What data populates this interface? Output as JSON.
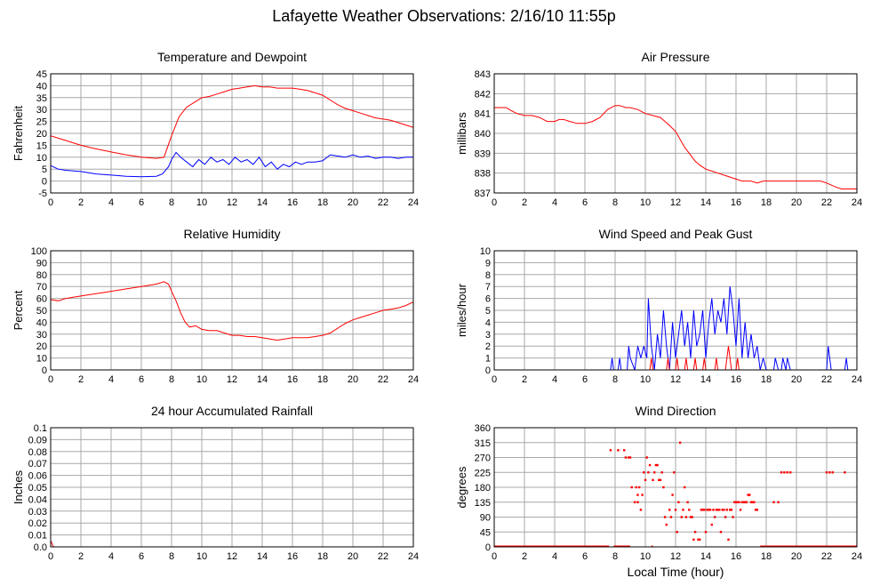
{
  "page": {
    "title": "Lafayette Weather Observations: 2/16/10 11:55p",
    "footer_xlabel": "Local Time (hour)"
  },
  "colors": {
    "red": "#ff0000",
    "blue": "#0000ff",
    "grid": "#a8a8a8",
    "frame": "#000000"
  },
  "chart_data": [
    {
      "id": "temp",
      "type": "line",
      "title": "Temperature and Dewpoint",
      "xlabel": "",
      "ylabel": "Fahrenheit",
      "xlim": [
        0,
        24
      ],
      "xticks": [
        0,
        2,
        4,
        6,
        8,
        10,
        12,
        14,
        16,
        18,
        20,
        22,
        24
      ],
      "ylim": [
        -5,
        45
      ],
      "yticks": [
        -5,
        0,
        5,
        10,
        15,
        20,
        25,
        30,
        35,
        40,
        45
      ],
      "series": [
        {
          "color": "#ff0000",
          "x": [
            0,
            1,
            2,
            3,
            4,
            5,
            6,
            7,
            7.5,
            8,
            8.5,
            9,
            9.5,
            10,
            10.5,
            11,
            11.5,
            12,
            12.5,
            13,
            13.5,
            14,
            14.5,
            15,
            15.5,
            16,
            16.5,
            17,
            17.5,
            18,
            18.5,
            19,
            19.5,
            20,
            20.5,
            21,
            21.5,
            22,
            22.5,
            23,
            23.5,
            24
          ],
          "values": [
            19,
            17,
            15,
            13.5,
            12.2,
            11,
            10,
            9.5,
            10,
            19,
            27,
            31,
            33,
            35,
            35.5,
            36.5,
            37.5,
            38.5,
            39,
            39.5,
            40,
            39.5,
            39.5,
            39,
            39,
            39,
            38.5,
            38,
            37,
            36,
            34,
            32,
            30.5,
            29.5,
            28.5,
            27.5,
            26.5,
            26,
            25.5,
            24.5,
            23.5,
            22.5
          ]
        },
        {
          "color": "#0000ff",
          "x": [
            0,
            0.5,
            1,
            2,
            3,
            4,
            5,
            6,
            7,
            7.4,
            7.8,
            8,
            8.3,
            8.6,
            9,
            9.4,
            9.8,
            10.2,
            10.6,
            11,
            11.4,
            11.8,
            12.2,
            12.6,
            13,
            13.4,
            13.8,
            14.2,
            14.6,
            15,
            15.4,
            15.8,
            16.2,
            16.6,
            17,
            17.5,
            18,
            18.5,
            19,
            19.5,
            20,
            20.5,
            21,
            21.5,
            22,
            22.5,
            23,
            23.5,
            24
          ],
          "values": [
            6.5,
            5,
            4.5,
            4,
            3,
            2.5,
            2,
            1.8,
            2,
            3,
            6,
            9,
            12,
            10,
            8,
            6,
            9,
            7,
            10,
            8,
            9,
            7,
            10,
            8,
            9,
            7,
            10,
            6,
            8,
            5,
            7,
            6,
            8,
            7,
            8,
            8,
            8.5,
            11,
            10.5,
            10,
            11,
            10,
            10.5,
            9.5,
            10,
            10,
            9.5,
            10,
            10
          ]
        }
      ]
    },
    {
      "id": "pressure",
      "type": "line",
      "title": "Air Pressure",
      "xlabel": "",
      "ylabel": "millibars",
      "xlim": [
        0,
        24
      ],
      "xticks": [
        0,
        2,
        4,
        6,
        8,
        10,
        12,
        14,
        16,
        18,
        20,
        22,
        24
      ],
      "ylim": [
        837,
        843
      ],
      "yticks": [
        837,
        838,
        839,
        840,
        841,
        842,
        843
      ],
      "series": [
        {
          "color": "#ff0000",
          "x": [
            0,
            0.8,
            1,
            1.5,
            2,
            2.5,
            3,
            3.5,
            4,
            4.3,
            4.6,
            5,
            5.5,
            6,
            6.5,
            7,
            7.5,
            8,
            8.3,
            8.7,
            9,
            9.5,
            10,
            10.5,
            11,
            11.3,
            11.6,
            12,
            12.3,
            12.6,
            13,
            13.3,
            13.6,
            14,
            14.4,
            14.8,
            15.2,
            15.6,
            16,
            16.4,
            17,
            17.4,
            17.8,
            18,
            19,
            20,
            21,
            21.6,
            22,
            22.3,
            22.6,
            23,
            23.5,
            24
          ],
          "values": [
            841.3,
            841.3,
            841.2,
            841.0,
            840.9,
            840.9,
            840.8,
            840.6,
            840.6,
            840.7,
            840.7,
            840.6,
            840.5,
            840.5,
            840.6,
            840.8,
            841.2,
            841.4,
            841.4,
            841.3,
            841.3,
            841.2,
            841.0,
            840.9,
            840.8,
            840.6,
            840.4,
            840.1,
            839.7,
            839.3,
            838.9,
            838.6,
            838.4,
            838.2,
            838.1,
            838.0,
            837.9,
            837.8,
            837.7,
            837.6,
            837.6,
            837.5,
            837.6,
            837.6,
            837.6,
            837.6,
            837.6,
            837.6,
            837.5,
            837.4,
            837.3,
            837.2,
            837.2,
            837.2
          ]
        }
      ]
    },
    {
      "id": "humidity",
      "type": "line",
      "title": "Relative Humidity",
      "xlabel": "",
      "ylabel": "Percent",
      "xlim": [
        0,
        24
      ],
      "xticks": [
        0,
        2,
        4,
        6,
        8,
        10,
        12,
        14,
        16,
        18,
        20,
        22,
        24
      ],
      "ylim": [
        0,
        100
      ],
      "yticks": [
        0,
        10,
        20,
        30,
        40,
        50,
        60,
        70,
        80,
        90,
        100
      ],
      "series": [
        {
          "color": "#ff0000",
          "x": [
            0,
            0.5,
            1,
            2,
            3,
            4,
            5,
            6,
            7,
            7.5,
            7.8,
            8,
            8.3,
            8.6,
            8.9,
            9.2,
            9.6,
            10,
            10.5,
            11,
            11.5,
            12,
            12.5,
            13,
            13.5,
            14,
            14.5,
            15,
            15.5,
            16,
            16.5,
            17,
            17.5,
            18,
            18.5,
            19,
            19.5,
            20,
            20.5,
            21,
            21.5,
            22,
            22.5,
            23,
            23.5,
            24
          ],
          "values": [
            59,
            58,
            60,
            62,
            64,
            66,
            68,
            70,
            72,
            74,
            72,
            66,
            58,
            48,
            40,
            36,
            37,
            34,
            33,
            33,
            31,
            29,
            29,
            28,
            28,
            27,
            26,
            25,
            26,
            27,
            27,
            27,
            28,
            29,
            31,
            35,
            39,
            42,
            44,
            46,
            48,
            50,
            51,
            52,
            54,
            57
          ]
        }
      ]
    },
    {
      "id": "wind",
      "type": "line",
      "title": "Wind Speed and Peak Gust",
      "xlabel": "",
      "ylabel": "miles/hour",
      "xlim": [
        0,
        24
      ],
      "xticks": [
        0,
        2,
        4,
        6,
        8,
        10,
        12,
        14,
        16,
        18,
        20,
        22,
        24
      ],
      "ylim": [
        0,
        10
      ],
      "yticks": [
        0,
        1,
        2,
        3,
        4,
        5,
        6,
        7,
        8,
        9,
        10
      ],
      "series": [
        {
          "color": "#0000ff",
          "x": [
            0,
            7.7,
            7.8,
            7.9,
            8.2,
            8.3,
            8.4,
            8.8,
            8.9,
            9.0,
            9.3,
            9.5,
            9.7,
            9.9,
            10.1,
            10.2,
            10.4,
            10.6,
            10.8,
            11.0,
            11.2,
            11.4,
            11.6,
            11.8,
            12.0,
            12.2,
            12.4,
            12.6,
            12.8,
            13.0,
            13.2,
            13.4,
            13.6,
            13.8,
            14.0,
            14.2,
            14.4,
            14.6,
            14.8,
            15.0,
            15.2,
            15.4,
            15.6,
            15.8,
            16.0,
            16.2,
            16.4,
            16.6,
            16.8,
            17.0,
            17.2,
            17.4,
            17.6,
            17.8,
            18.0,
            18.2,
            18.5,
            18.6,
            18.8,
            19.0,
            19.1,
            19.3,
            19.4,
            19.6,
            19.7,
            22.0,
            22.1,
            22.3,
            23.2,
            23.3,
            23.4,
            24
          ],
          "values": [
            0,
            0,
            1,
            0,
            0,
            1,
            0,
            0,
            2,
            1,
            0,
            2,
            1,
            2,
            1,
            6,
            2,
            0,
            3,
            1,
            5,
            2,
            0,
            4,
            1,
            3,
            5,
            2,
            4,
            1,
            5,
            2,
            3,
            5,
            1,
            4,
            6,
            3,
            5,
            4,
            6,
            3,
            7,
            5,
            2,
            6,
            1,
            4,
            1,
            3,
            1,
            2,
            0,
            1,
            0,
            0,
            0,
            1,
            0,
            0,
            1,
            0,
            1,
            0,
            0,
            0,
            2,
            0,
            0,
            1,
            0,
            0
          ]
        },
        {
          "color": "#ff0000",
          "x": [
            0,
            10.3,
            10.4,
            10.5,
            11.4,
            11.5,
            11.6,
            12.0,
            12.1,
            12.2,
            12.6,
            12.7,
            12.8,
            13.2,
            13.3,
            13.4,
            13.8,
            13.9,
            14.0,
            14.6,
            14.7,
            14.8,
            15.3,
            15.4,
            15.5,
            15.6,
            15.7,
            16.0,
            16.1,
            16.2,
            24
          ],
          "values": [
            0,
            0,
            1,
            0,
            0,
            1,
            0,
            0,
            1,
            0,
            0,
            1,
            0,
            0,
            1,
            0,
            0,
            1,
            0,
            0,
            1,
            0,
            0,
            1,
            2,
            1,
            0,
            0,
            1,
            0,
            0
          ]
        }
      ]
    },
    {
      "id": "rain",
      "type": "line",
      "title": "24 hour Accumulated Rainfall",
      "xlabel": "",
      "ylabel": "Inches",
      "xlim": [
        0,
        24
      ],
      "xticks": [
        0,
        2,
        4,
        6,
        8,
        10,
        12,
        14,
        16,
        18,
        20,
        22,
        24
      ],
      "ylim": [
        0,
        0.1
      ],
      "yticks": [
        0.0,
        0.01,
        0.02,
        0.03,
        0.04,
        0.05,
        0.06,
        0.07,
        0.08,
        0.09,
        0.1
      ],
      "ytick_labels": [
        "0.0",
        "0.01",
        "0.02",
        "0.03",
        "0.04",
        "0.05",
        "0.06",
        "0.07",
        "0.08",
        "0.09",
        "0.1"
      ],
      "series": [
        {
          "color": "#ff0000",
          "x": [
            0,
            0.05,
            0.1,
            0.2,
            24
          ],
          "values": [
            0.005,
            0.004,
            0.002,
            0,
            0
          ]
        }
      ]
    },
    {
      "id": "direction",
      "type": "scatter",
      "title": "Wind Direction",
      "xlabel": "Local Time (hour)",
      "ylabel": "degrees",
      "xlim": [
        0,
        24
      ],
      "xticks": [
        0,
        2,
        4,
        6,
        8,
        10,
        12,
        14,
        16,
        18,
        20,
        22,
        24
      ],
      "ylim": [
        0,
        360
      ],
      "yticks": [
        0,
        45,
        90,
        135,
        180,
        225,
        270,
        315,
        360
      ],
      "series": [
        {
          "color": "#ff0000",
          "x": [
            7.7,
            8.2,
            8.6,
            8.7,
            8.9,
            9.0,
            9.1,
            9.3,
            9.4,
            9.5,
            9.5,
            9.6,
            9.7,
            9.8,
            9.9,
            10.0,
            10.1,
            10.2,
            10.3,
            10.5,
            10.6,
            10.7,
            10.8,
            10.9,
            11.0,
            11.1,
            11.2,
            11.3,
            11.4,
            11.6,
            11.7,
            11.8,
            11.9,
            12.0,
            12.1,
            12.2,
            12.3,
            12.4,
            12.5,
            12.6,
            12.7,
            12.8,
            12.9,
            13.0,
            13.1,
            13.2,
            13.3,
            13.5,
            13.6,
            13.7,
            13.8,
            13.9,
            14.0,
            14.1,
            14.2,
            14.3,
            14.4,
            14.5,
            14.6,
            14.7,
            14.8,
            14.9,
            15.0,
            15.1,
            15.2,
            15.3,
            15.4,
            15.5,
            15.6,
            15.7,
            15.8,
            15.9,
            16.0,
            16.1,
            16.2,
            16.3,
            16.4,
            16.5,
            16.6,
            16.7,
            16.8,
            16.9,
            17.0,
            17.1,
            17.2,
            17.3,
            17.4,
            18.5,
            18.8,
            19.0,
            19.2,
            19.4,
            19.6,
            22.0,
            22.2,
            22.4,
            23.2
          ],
          "values": [
            292,
            292,
            292,
            270,
            270,
            270,
            180,
            135,
            180,
            135,
            157,
            180,
            112,
            157,
            225,
            202,
            270,
            225,
            247,
            202,
            225,
            247,
            247,
            202,
            202,
            225,
            180,
            90,
            67,
            112,
            90,
            157,
            225,
            112,
            45,
            135,
            315,
            90,
            112,
            180,
            90,
            135,
            112,
            90,
            90,
            22,
            45,
            22,
            22,
            112,
            112,
            112,
            45,
            112,
            112,
            112,
            67,
            112,
            90,
            112,
            112,
            112,
            45,
            112,
            112,
            90,
            112,
            22,
            112,
            112,
            90,
            135,
            135,
            135,
            135,
            112,
            135,
            135,
            135,
            135,
            157,
            157,
            135,
            135,
            135,
            112,
            112,
            135,
            135,
            225,
            225,
            225,
            225,
            225,
            225,
            225,
            225
          ],
          "baseline_segments": [
            [
              0,
              7.6
            ],
            [
              7.9,
              9.0
            ],
            [
              10.4,
              10.5
            ],
            [
              17.6,
              24
            ]
          ],
          "baseline_value": 0
        }
      ]
    }
  ]
}
